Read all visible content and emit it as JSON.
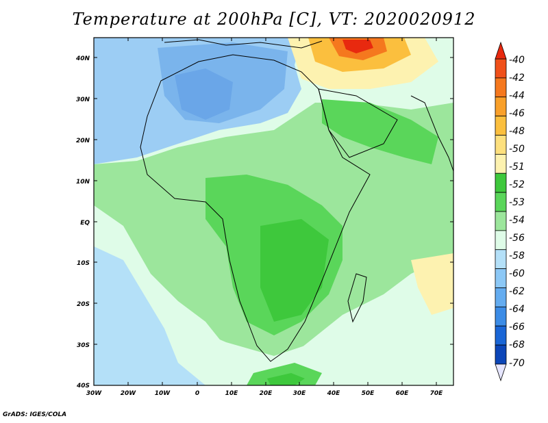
{
  "title": "Temperature at 200hPa [C], VT: 2020020912",
  "footer": "GrADS: IGES/COLA",
  "map": {
    "lon_ticks": [
      "30W",
      "20W",
      "10W",
      "0",
      "10E",
      "20E",
      "30E",
      "40E",
      "50E",
      "60E",
      "70E"
    ],
    "lat_ticks": [
      "40N",
      "30N",
      "20N",
      "10N",
      "EQ",
      "10S",
      "20S",
      "30S",
      "40S"
    ]
  },
  "colorbar": {
    "labels": [
      "-40",
      "-42",
      "-44",
      "-46",
      "-48",
      "-50",
      "-51",
      "-52",
      "-53",
      "-54",
      "-56",
      "-58",
      "-60",
      "-62",
      "-64",
      "-66",
      "-68",
      "-70"
    ],
    "colors": [
      "#e8290f",
      "#f0501a",
      "#f5781e",
      "#f9a02a",
      "#fbbf3e",
      "#fde07e",
      "#fdf2b0",
      "#3ec83c",
      "#5ad65a",
      "#9ce69c",
      "#dffce8",
      "#b4e0f8",
      "#8cc8f6",
      "#64acf0",
      "#3c8ce6",
      "#1a66d6",
      "#0c46b8",
      "#081c78"
    ]
  }
}
